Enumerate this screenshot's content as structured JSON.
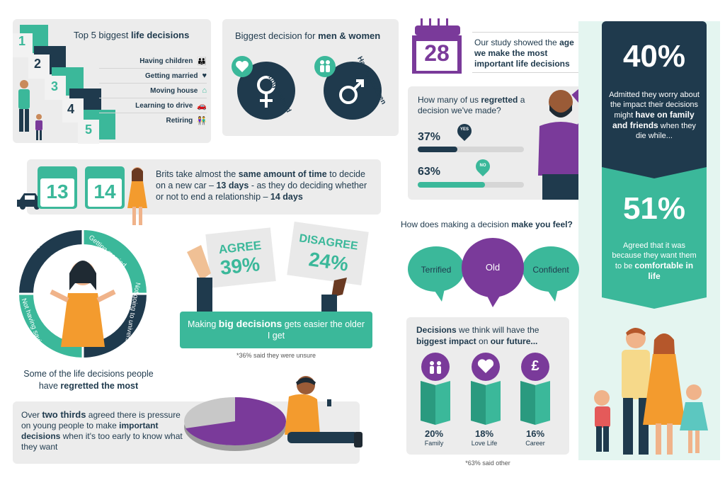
{
  "top5": {
    "title_prefix": "Top 5 biggest ",
    "title_bold": "life decisions",
    "steps": [
      "1",
      "2",
      "3",
      "4",
      "5"
    ],
    "items": [
      "Having children",
      "Getting married",
      "Moving house",
      "Learning to drive",
      "Retiring"
    ]
  },
  "men_women": {
    "title_prefix": "Biggest decision for ",
    "title_bold": "men & women",
    "female_label": "Getting married",
    "male_label": "Having children"
  },
  "age": {
    "number": "28",
    "text_1": "Our study showed the",
    "text_bold": "age we make the most important life decisions"
  },
  "regret": {
    "q_prefix": "How many of us ",
    "q_bold": "regretted",
    "q_suffix": " a decision we've made?",
    "yes_pct": "37%",
    "yes_label": "YES",
    "yes_value": 0.37,
    "no_pct": "63%",
    "no_label": "NO",
    "no_value": 0.63
  },
  "worry": {
    "pct": "40%",
    "text_1": "Admitted they worry about the impact their decisions might",
    "text_bold": "have on family and friends",
    "text_2": " when they die while..."
  },
  "comfort": {
    "pct": "51%",
    "text_1": "Agreed that it was because they want them to be",
    "text_bold": "comfortable in life"
  },
  "days": {
    "cal_1": "13",
    "cal_2": "14",
    "t1": "Brits take almost the ",
    "b1": "same amount of time",
    "t2": " to decide on a new car – ",
    "b2": "13 days",
    "t3": " - as they do deciding whether or not to end a relationship – ",
    "b3": "14 days"
  },
  "feel": {
    "q_prefix": "How does making a decision ",
    "q_bold": "make you feel?",
    "left": "Terrified",
    "mid": "Old",
    "right": "Confident"
  },
  "wheel": {
    "segments": [
      "Career choice",
      "Getting married",
      "Not going to university",
      "Not having savings"
    ],
    "caption_1": "Some of the life decisions people have",
    "caption_bold": "regretted the most"
  },
  "agree": {
    "agree_label": "AGREE",
    "agree_pct": "39%",
    "disagree_label": "DISAGREE",
    "disagree_pct": "24%",
    "t1": "Making ",
    "bold": "big decisions",
    "t2": " gets easier the older I get",
    "note": "*36% said they were unsure"
  },
  "impact": {
    "title_bold_1": "Decisions",
    "title_1": " we think will have the",
    "title_bold_2": "biggest impact",
    "title_2": " on ",
    "title_bold_3": "our future...",
    "items": [
      {
        "pct": "20%",
        "label": "Family"
      },
      {
        "pct": "18%",
        "label": "Love Life"
      },
      {
        "pct": "16%",
        "label": "Career"
      }
    ],
    "pound": "£",
    "note": "*63% said other"
  },
  "pressure": {
    "t1": "Over ",
    "b1": "two thirds",
    "t2": " agreed there is pressure on young people to make ",
    "b2": "important decisions",
    "t3": " when it's too early to know what they want"
  },
  "colors": {
    "navy": "#1f3a4d",
    "teal": "#3bb89a",
    "purple": "#7a3a9a",
    "orange": "#f39b2e"
  }
}
